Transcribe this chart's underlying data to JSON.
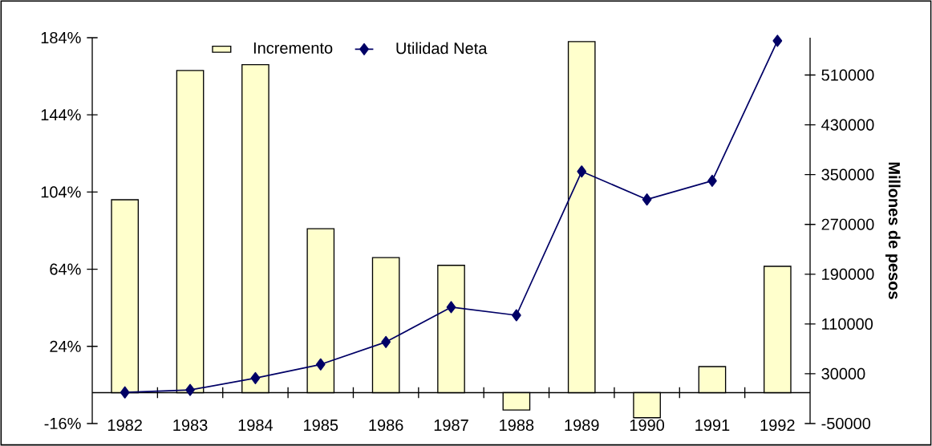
{
  "chart_data": {
    "type": "bar",
    "categories": [
      "1982",
      "1983",
      "1984",
      "1985",
      "1986",
      "1987",
      "1988",
      "1989",
      "1990",
      "1991",
      "1992"
    ],
    "series": [
      {
        "name": "Incremento",
        "color": "#ffffcc",
        "values": [
          100,
          167,
          170,
          85,
          70,
          66,
          -9,
          182,
          -13,
          13.5,
          65.5
        ]
      },
      {
        "name": "Utilidad Neta",
        "type": "line",
        "axis": "y2",
        "color": "#000066",
        "values": [
          0,
          4000,
          23000,
          45000,
          81000,
          137000,
          124000,
          355000,
          310000,
          340000,
          565000
        ]
      }
    ],
    "ylim": [
      -16,
      184
    ],
    "yticks": [
      {
        "value": -16,
        "label": "-16%"
      },
      {
        "value": 24,
        "label": "24%"
      },
      {
        "value": 64,
        "label": "64%"
      },
      {
        "value": 104,
        "label": "104%"
      },
      {
        "value": 144,
        "label": "144%"
      },
      {
        "value": 184,
        "label": "184%"
      }
    ],
    "y2lim": [
      -50000,
      570000
    ],
    "y2ticks": [
      -50000,
      30000,
      110000,
      190000,
      270000,
      350000,
      430000,
      510000
    ],
    "y2label": "Millones de pesos",
    "legend": "top",
    "grid": false,
    "marker": "diamond",
    "line_style": "solid"
  }
}
